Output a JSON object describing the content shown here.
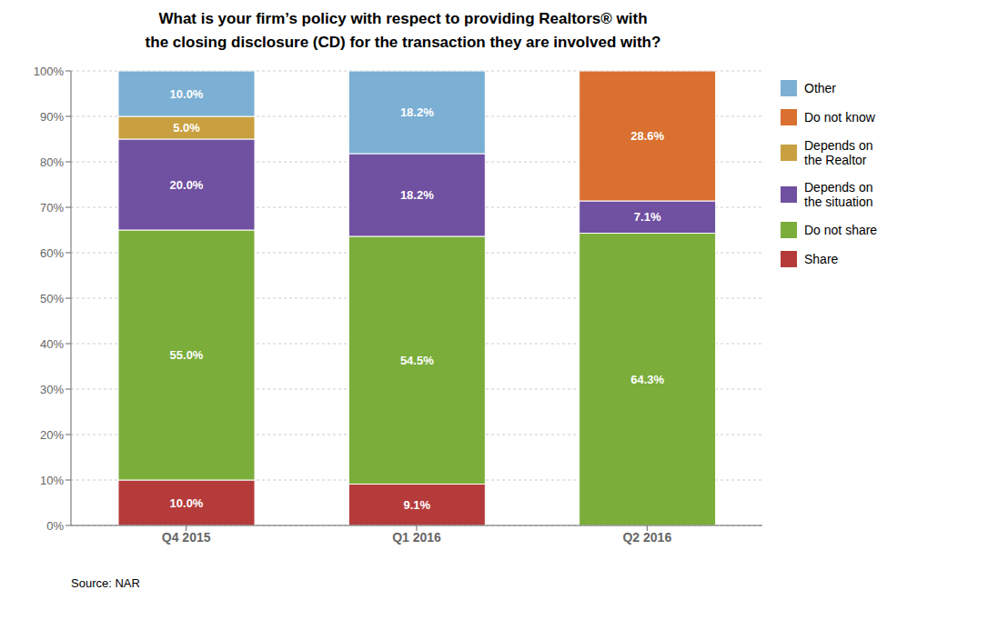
{
  "chart_data": {
    "type": "bar",
    "title": "What is your firm’s policy with respect to providing Realtors® with\nthe closing disclosure (CD) for the transaction they are involved with?",
    "categories": [
      "Q4 2015",
      "Q1 2016",
      "Q2 2016"
    ],
    "series": [
      {
        "name": "Share",
        "color": "#b53b3b",
        "values": [
          10.0,
          9.1,
          0.0
        ],
        "value_labels": [
          "10.0%",
          "9.1%",
          null
        ]
      },
      {
        "name": "Do not share",
        "color": "#7aad3a",
        "values": [
          55.0,
          54.5,
          64.3
        ],
        "value_labels": [
          "55.0%",
          "54.5%",
          "64.3%"
        ]
      },
      {
        "name": "Depends on\nthe situation",
        "color": "#7050a0",
        "values": [
          20.0,
          18.2,
          7.1
        ],
        "value_labels": [
          "20.0%",
          "18.2%",
          "7.1%"
        ]
      },
      {
        "name": "Depends on\nthe Realtor",
        "color": "#c8a040",
        "values": [
          5.0,
          0.0,
          0.0
        ],
        "value_labels": [
          "5.0%",
          null,
          null
        ]
      },
      {
        "name": "Do not know",
        "color": "#d97030",
        "values": [
          0.0,
          0.0,
          28.6
        ],
        "value_labels": [
          null,
          null,
          "28.6%"
        ]
      },
      {
        "name": "Other",
        "color": "#7bafd4",
        "values": [
          10.0,
          18.2,
          0.0
        ],
        "value_labels": [
          "10.0%",
          "18.2%",
          null
        ]
      }
    ],
    "stacked": true,
    "data_labels": true,
    "grid": true,
    "legend": "right",
    "ylim": [
      0,
      100
    ],
    "yticks": [
      {
        "value": 0,
        "label": "0%"
      },
      {
        "value": 10,
        "label": "10%"
      },
      {
        "value": 20,
        "label": "20%"
      },
      {
        "value": 30,
        "label": "30%"
      },
      {
        "value": 40,
        "label": "40%"
      },
      {
        "value": 50,
        "label": "50%"
      },
      {
        "value": 60,
        "label": "60%"
      },
      {
        "value": 70,
        "label": "70%"
      },
      {
        "value": 80,
        "label": "80%"
      },
      {
        "value": 90,
        "label": "90%"
      },
      {
        "value": 100,
        "label": "100%"
      }
    ],
    "annotations": [
      "Source: NAR"
    ]
  }
}
